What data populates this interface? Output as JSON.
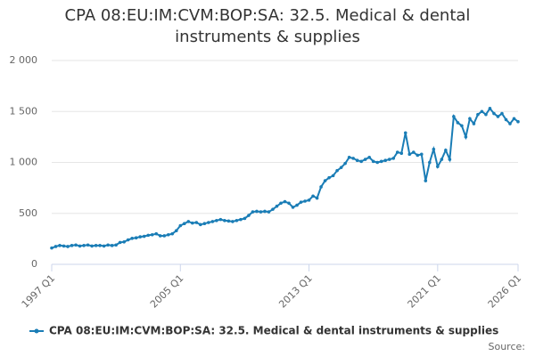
{
  "chart_data": {
    "type": "line",
    "title": "CPA 08:EU:IM:CVM:BOP:SA: 32.5. Medical & dental instruments & supplies",
    "categories": [
      "1997 Q1",
      null,
      null,
      null,
      null,
      null,
      null,
      null,
      null,
      null,
      null,
      null,
      null,
      null,
      null,
      null,
      null,
      null,
      null,
      null,
      null,
      null,
      null,
      null,
      null,
      null,
      null,
      null,
      null,
      null,
      null,
      null,
      "2005 Q1",
      null,
      null,
      null,
      null,
      null,
      null,
      null,
      null,
      null,
      null,
      null,
      null,
      null,
      null,
      null,
      null,
      null,
      null,
      null,
      null,
      null,
      null,
      null,
      null,
      null,
      null,
      null,
      null,
      null,
      null,
      null,
      "2013 Q1",
      null,
      null,
      null,
      null,
      null,
      null,
      null,
      null,
      null,
      null,
      null,
      null,
      null,
      null,
      null,
      null,
      null,
      null,
      null,
      null,
      null,
      null,
      null,
      null,
      null,
      null,
      null,
      null,
      null,
      null,
      null,
      "2021 Q1",
      null,
      null,
      null,
      null,
      null,
      null,
      null,
      null,
      null,
      null,
      null,
      null,
      null,
      null,
      null,
      null,
      null,
      null,
      null,
      "2026 Q1"
    ],
    "series": [
      {
        "name": "CPA 08:EU:IM:CVM:BOP:SA: 32.5. Medical & dental instruments & supplies",
        "color": "#1a7db6",
        "values": [
          160,
          175,
          185,
          180,
          175,
          185,
          190,
          180,
          185,
          190,
          180,
          185,
          185,
          180,
          190,
          185,
          190,
          215,
          220,
          240,
          255,
          260,
          270,
          275,
          285,
          290,
          300,
          280,
          280,
          290,
          300,
          330,
          380,
          400,
          420,
          405,
          410,
          390,
          400,
          410,
          420,
          430,
          440,
          430,
          425,
          420,
          430,
          440,
          450,
          480,
          515,
          520,
          515,
          520,
          515,
          540,
          570,
          600,
          615,
          600,
          560,
          580,
          610,
          620,
          630,
          670,
          650,
          760,
          820,
          850,
          870,
          920,
          950,
          990,
          1050,
          1040,
          1020,
          1010,
          1030,
          1050,
          1010,
          1000,
          1010,
          1020,
          1030,
          1040,
          1100,
          1090,
          1290,
          1080,
          1100,
          1070,
          1080,
          820,
          1000,
          1130,
          960,
          1030,
          1120,
          1030,
          1450,
          1390,
          1360,
          1250,
          1430,
          1380,
          1470,
          1500,
          1470,
          1530,
          1480,
          1450,
          1480,
          1420,
          1380,
          1430,
          1400
        ]
      }
    ],
    "ylim": [
      0,
      2000
    ],
    "yticks": [
      0,
      500,
      {
        "value": 1000,
        "label": "1 000"
      },
      {
        "value": 1500,
        "label": "1 500"
      },
      {
        "value": 2000,
        "label": "2 000"
      }
    ],
    "grid": true,
    "source": "Source:"
  }
}
